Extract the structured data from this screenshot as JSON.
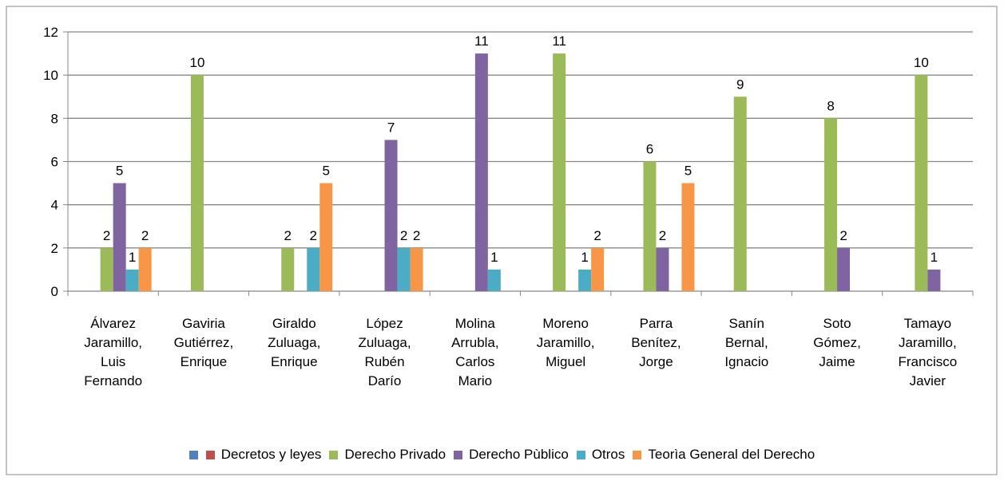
{
  "chart_data": {
    "type": "bar",
    "categories": [
      "Álvarez Jaramillo, Luis Fernando",
      "Gaviria Gutiérrez, Enrique",
      "Giraldo Zuluaga, Enrique",
      "López Zuluaga, Rubén Darío",
      "Molina Arrubla, Carlos Mario",
      "Moreno Jaramillo, Miguel",
      "Parra Benítez, Jorge",
      "Sanín Bernal, Ignacio",
      "Soto Gómez, Jaime",
      "Tamayo Jaramillo, Francisco Javier"
    ],
    "series": [
      {
        "color": "#4f81bd",
        "values": [
          null,
          null,
          null,
          null,
          null,
          null,
          null,
          null,
          null,
          null
        ]
      },
      {
        "name": "Decretos y leyes",
        "color": "#c0504d",
        "values": [
          null,
          null,
          null,
          null,
          null,
          null,
          null,
          null,
          null,
          null
        ]
      },
      {
        "name": "Derecho Privado",
        "color": "#9bbb59",
        "values": [
          2,
          10,
          2,
          null,
          null,
          11,
          6,
          9,
          8,
          10
        ]
      },
      {
        "name": "Derecho Pùblico",
        "color": "#8064a2",
        "values": [
          5,
          null,
          null,
          7,
          11,
          null,
          2,
          null,
          2,
          1
        ]
      },
      {
        "name": "Otros",
        "color": "#4bacc6",
        "values": [
          1,
          null,
          2,
          2,
          1,
          1,
          null,
          null,
          null,
          null
        ]
      },
      {
        "name": "Teorìa General del Derecho",
        "color": "#f79646",
        "values": [
          2,
          null,
          5,
          2,
          null,
          2,
          5,
          null,
          null,
          null
        ]
      }
    ],
    "ylim": [
      0,
      12
    ],
    "yticks": [
      0,
      2,
      4,
      6,
      8,
      10,
      12
    ],
    "grid": true,
    "legend": "bottom"
  }
}
